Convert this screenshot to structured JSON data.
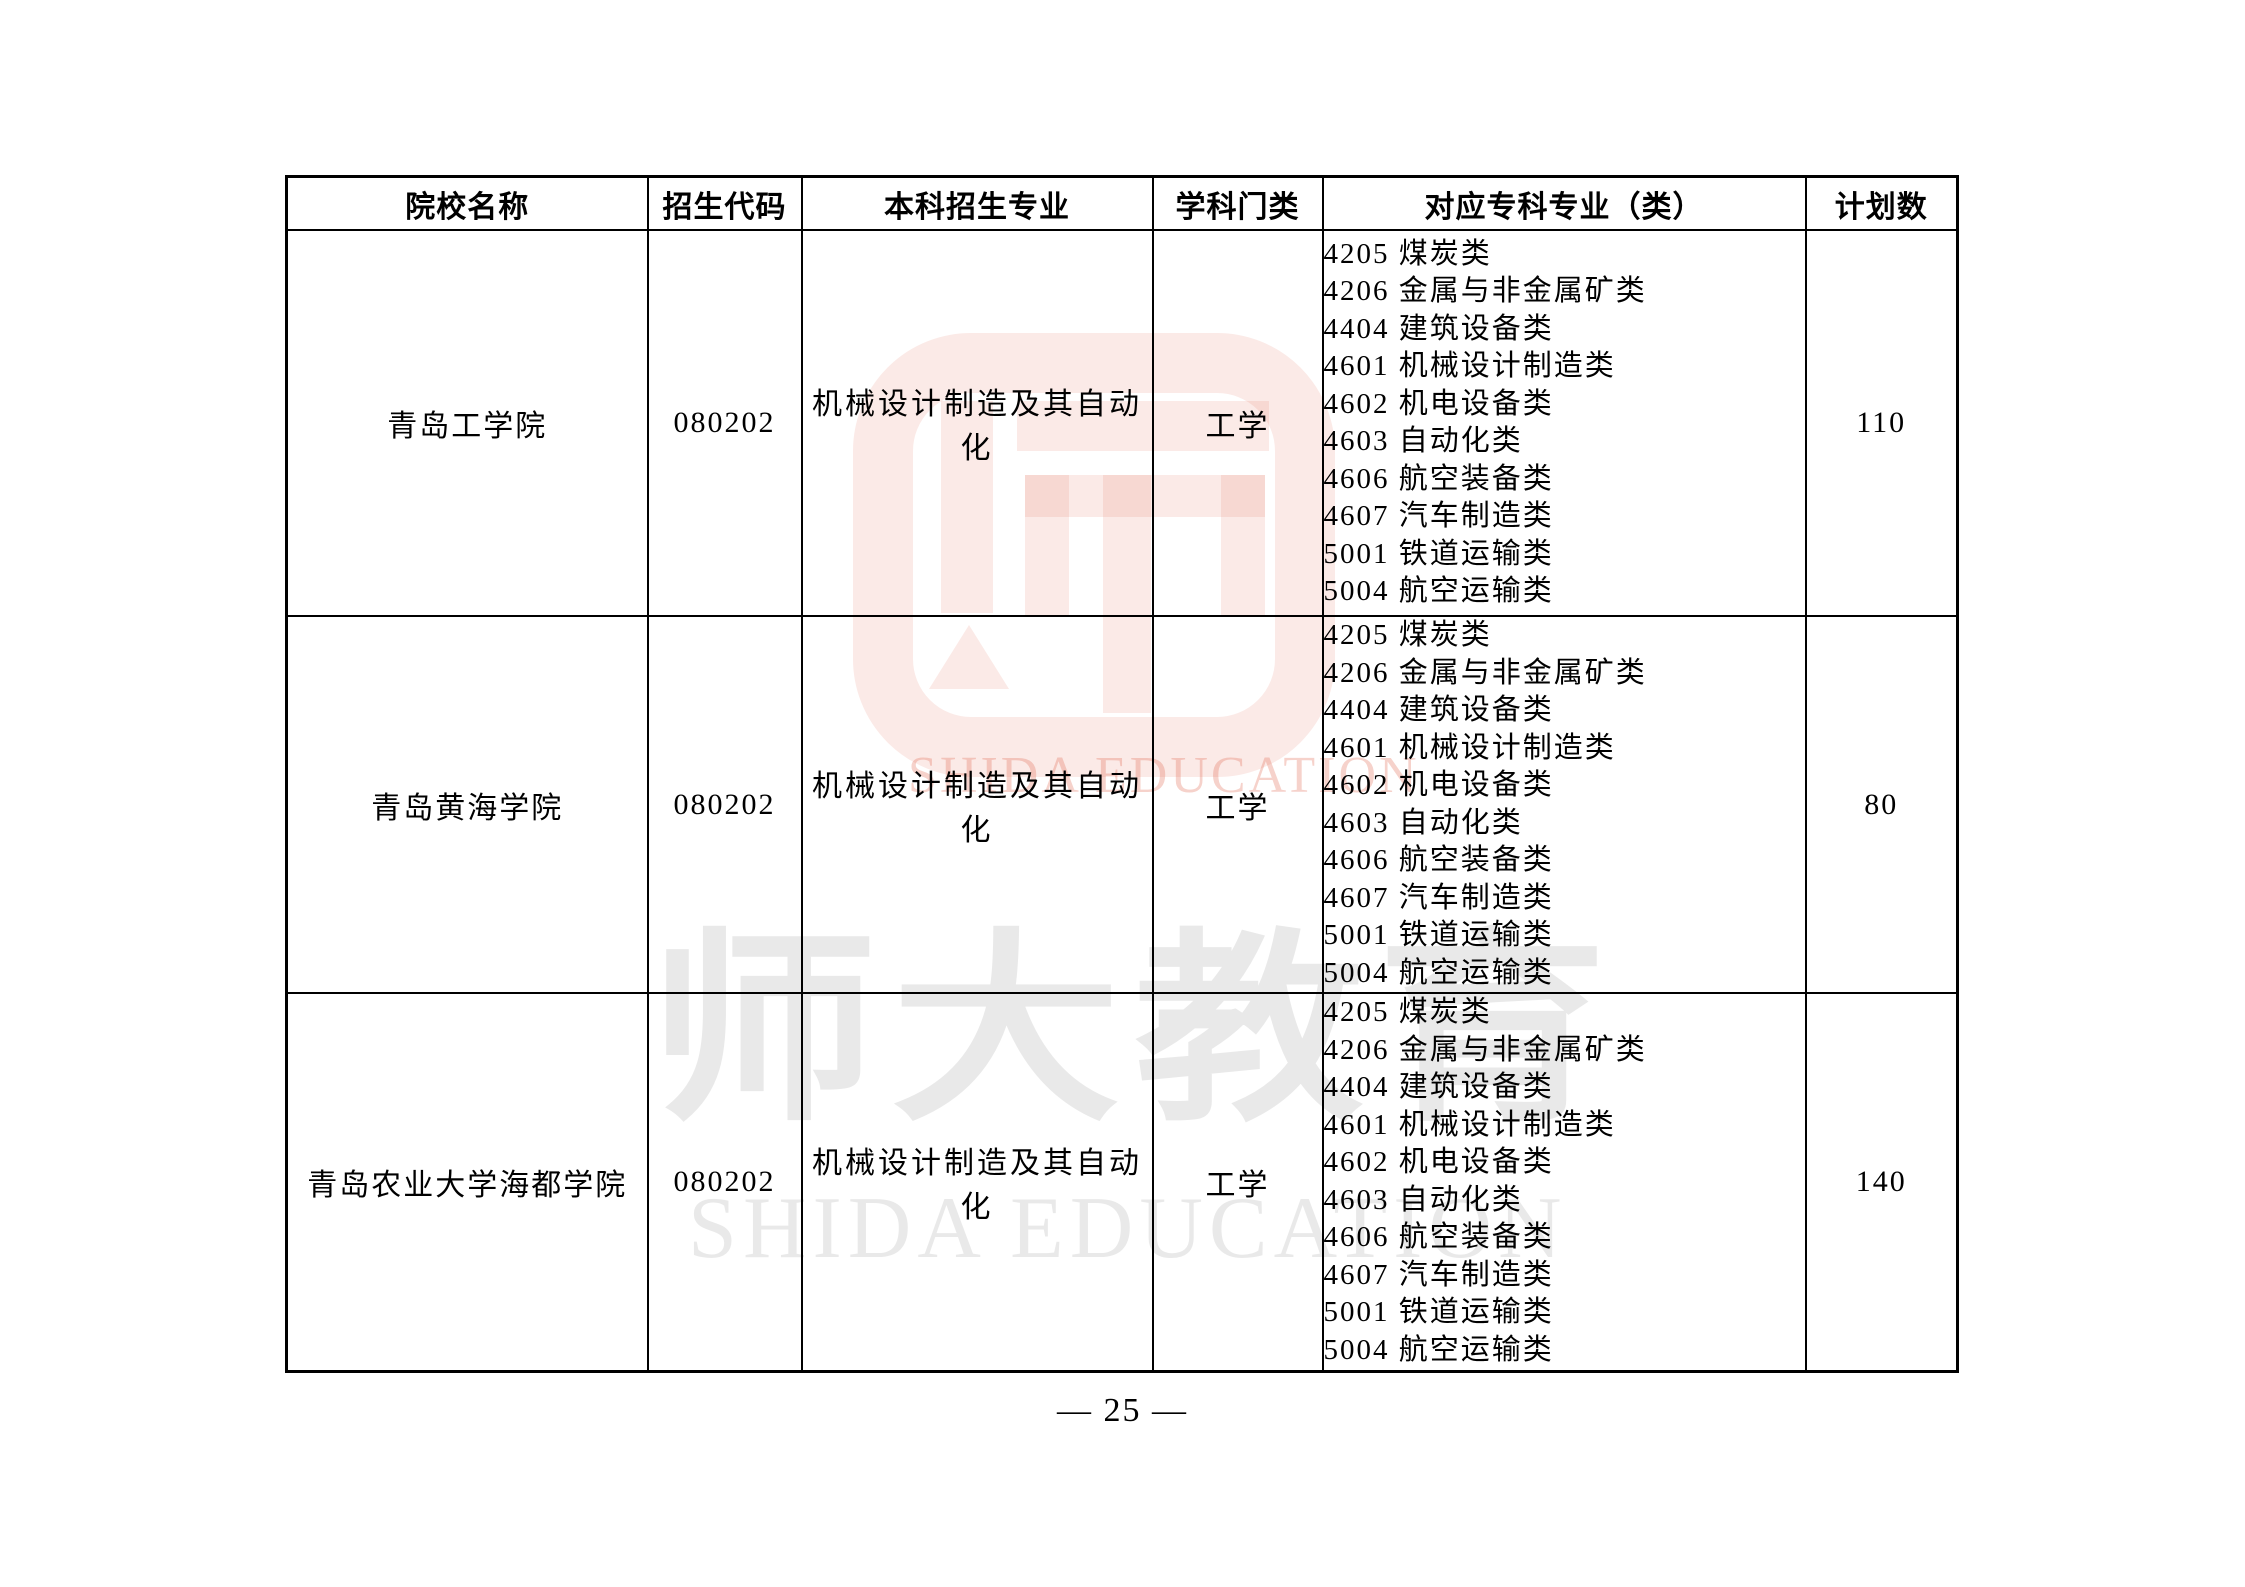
{
  "header": {
    "columns": [
      "院校名称",
      "招生代码",
      "本科招生专业",
      "学科门类",
      "对应专科专业（类）",
      "计划数"
    ]
  },
  "rows": [
    {
      "college": "青岛工学院",
      "code": "080202",
      "major": "机械设计制造及其自动化",
      "discipline": "工学",
      "plan": "110",
      "majors": [
        "4205 煤炭类",
        "4206 金属与非金属矿类",
        "4404 建筑设备类",
        "4601 机械设计制造类",
        "4602 机电设备类",
        "4603 自动化类",
        "4606 航空装备类",
        "4607 汽车制造类",
        "5001 铁道运输类",
        "5004 航空运输类"
      ]
    },
    {
      "college": "青岛黄海学院",
      "code": "080202",
      "major": "机械设计制造及其自动化",
      "discipline": "工学",
      "plan": "80",
      "majors": [
        "4205 煤炭类",
        "4206 金属与非金属矿类",
        "4404 建筑设备类",
        "4601 机械设计制造类",
        "4602 机电设备类",
        "4603 自动化类",
        "4606 航空装备类",
        "4607 汽车制造类",
        "5001 铁道运输类",
        "5004 航空运输类"
      ]
    },
    {
      "college": "青岛农业大学海都学院",
      "code": "080202",
      "major": "机械设计制造及其自动化",
      "discipline": "工学",
      "plan": "140",
      "majors": [
        "4205 煤炭类",
        "4206 金属与非金属矿类",
        "4404 建筑设备类",
        "4601 机械设计制造类",
        "4602 机电设备类",
        "4603 自动化类",
        "4606 航空装备类",
        "4607 汽车制造类",
        "5001 铁道运输类",
        "5004 航空运输类"
      ]
    }
  ],
  "watermark": {
    "logo_caption": "SHIDA EDUCATION",
    "gray_text": "师大教育",
    "gray_caption": "SHIDA EDUCATION"
  },
  "footer": {
    "page_number": "— 25 —"
  },
  "colors": {
    "wm_pink": "rgba(226,106,84,0.14)",
    "wm_pink_strong": "rgba(226,106,84,0.30)",
    "wm_gray": "rgba(0,0,0,0.085)",
    "ink": "#000000"
  }
}
